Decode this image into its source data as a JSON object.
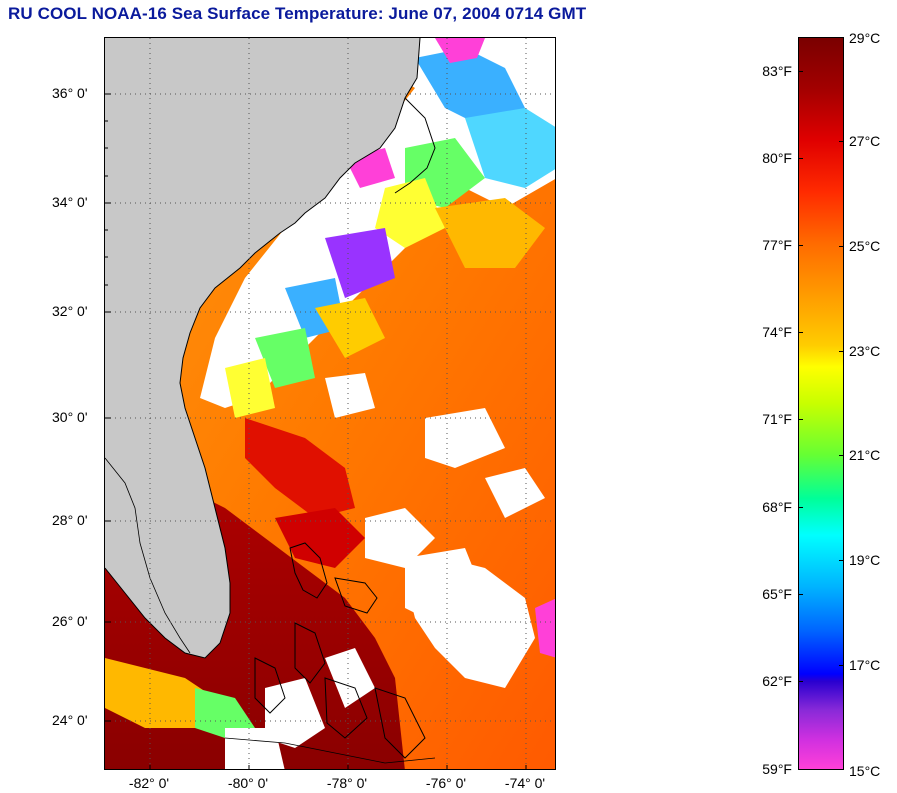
{
  "title": "RU COOL  NOAA-16  Sea Surface Temperature:  June 07, 2004 0714 GMT",
  "colors": {
    "title": "#0a1a9c",
    "land": "#c8c8c8",
    "cloud": "#ffffff",
    "grid": "#555555"
  },
  "map": {
    "y_axis_labels": [
      "36° 0'",
      "34° 0'",
      "32° 0'",
      "30° 0'",
      "28° 0'",
      "26° 0'",
      "24° 0'"
    ],
    "x_axis_labels": [
      "-82° 0'",
      "-80° 0'",
      "-78° 0'",
      "-76° 0'",
      "-74° 0'"
    ],
    "lat_range": [
      23.1,
      37.0
    ],
    "lon_range": [
      -83.0,
      -73.8
    ]
  },
  "colorbar": {
    "fahrenheit_labels": [
      "83°F",
      "80°F",
      "77°F",
      "74°F",
      "71°F",
      "68°F",
      "65°F",
      "62°F",
      "59°F"
    ],
    "celsius_labels": [
      "29°C",
      "27°C",
      "25°C",
      "23°C",
      "21°C",
      "19°C",
      "17°C",
      "15°C"
    ],
    "range_c": [
      15,
      29
    ]
  }
}
